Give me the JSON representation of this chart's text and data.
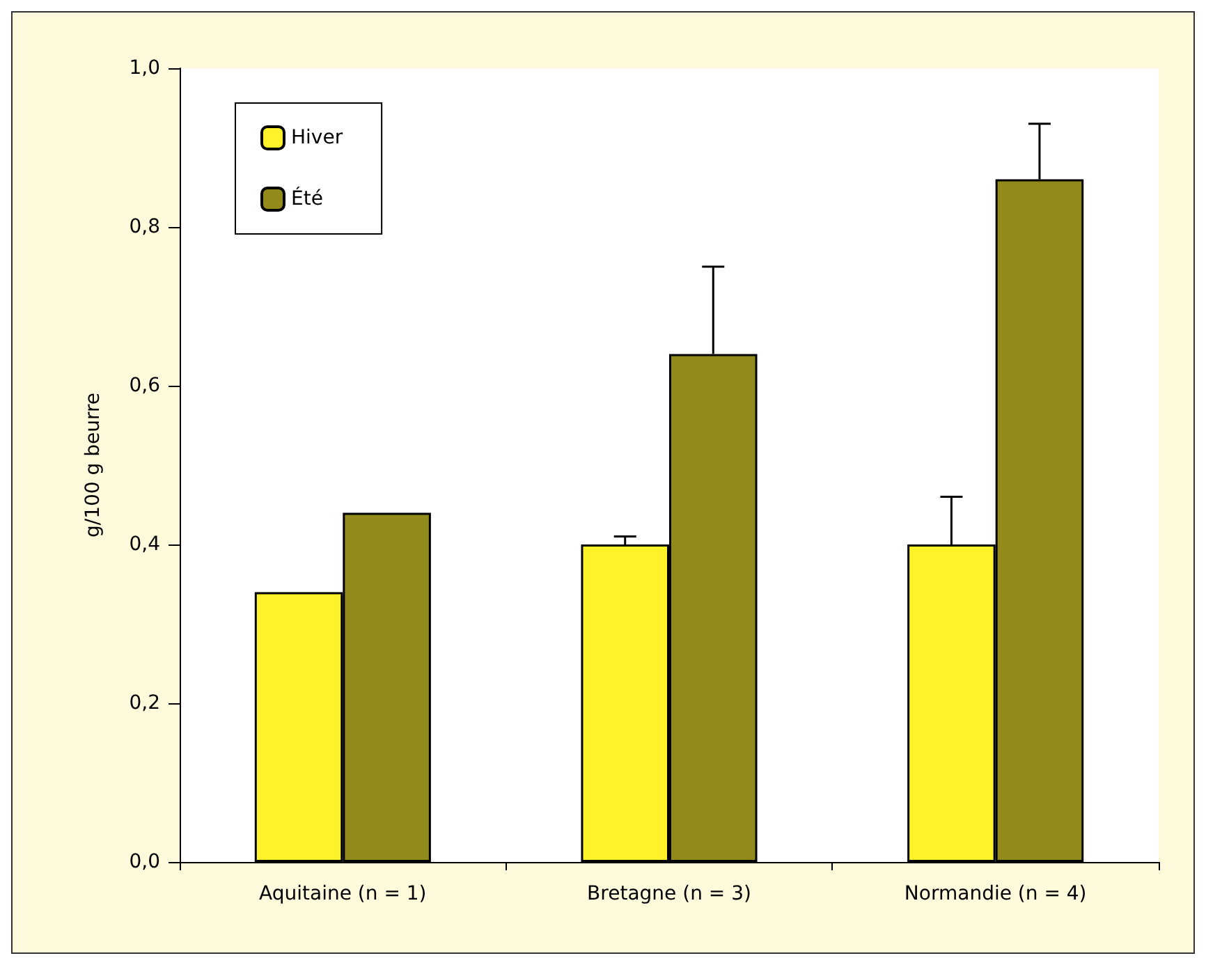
{
  "chart_data": {
    "type": "bar",
    "ylabel": "g/100 g beurre",
    "categories": [
      "Aquitaine (n = 1)",
      "Bretagne (n = 3)",
      "Normandie (n = 4)"
    ],
    "series": [
      {
        "name": "Hiver",
        "color": "#fff22a",
        "values": [
          0.34,
          0.4,
          0.4
        ],
        "errors": [
          null,
          [
            0.4,
            0.41
          ],
          [
            0.4,
            0.46
          ]
        ]
      },
      {
        "name": "Été",
        "color": "#938a1c",
        "values": [
          0.44,
          0.64,
          0.86
        ],
        "errors": [
          null,
          [
            0.64,
            0.75
          ],
          [
            0.86,
            0.93
          ]
        ]
      }
    ],
    "ylim": [
      0,
      1
    ],
    "yticks": [
      {
        "value": 0,
        "label": "0,0"
      },
      {
        "value": 0.2,
        "label": "0,2"
      },
      {
        "value": 0.4,
        "label": "0,4"
      },
      {
        "value": 0.6,
        "label": "0,6"
      },
      {
        "value": 0.8,
        "label": "0,8"
      },
      {
        "value": 1,
        "label": "1,0"
      }
    ],
    "grid": false,
    "legend": "top left"
  }
}
